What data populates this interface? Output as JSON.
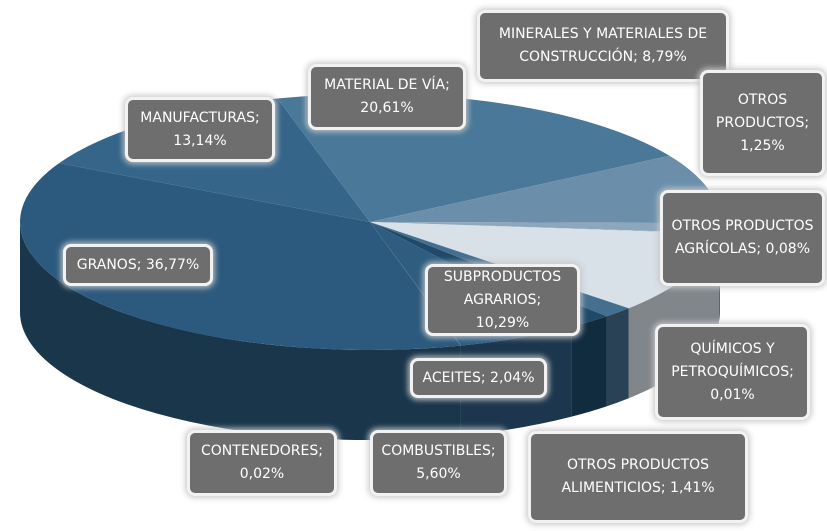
{
  "chart_data": {
    "type": "pie3d",
    "categories": [
      "GRANOS;",
      "MANUFACTURAS;",
      "MATERIAL DE VÍA;",
      "MINERALES Y MATERIALES DE CONSTRUCCIÓN;",
      "OTROS PRODUCTOS;",
      "OTROS PRODUCTOS AGRÍCOLAS;",
      "QUÍMICOS Y PETROQUÍMICOS;",
      "SUBPRODUCTOS AGRARIOS;",
      "OTROS PRODUCTOS ALIMENTICIOS;",
      "ACEITES;",
      "COMBUSTIBLES;",
      "CONTENEDORES;"
    ],
    "values": [
      36.77,
      13.14,
      20.61,
      8.79,
      1.25,
      0.08,
      0.01,
      10.29,
      1.41,
      2.04,
      5.6,
      0.02
    ],
    "value_labels": [
      "36,77%",
      "13,14%",
      "20,61%",
      "8,79%",
      "1,25%",
      "0,08%",
      "0,01%",
      "10,29%",
      "1,41%",
      "2,04%",
      "5,60%",
      "0,02%"
    ],
    "colors": [
      "#2c5a7e",
      "#36658a",
      "#4a7899",
      "#6b8fab",
      "#8ca6bc",
      "#a9bccc",
      "#c0ceda",
      "#d8e0e8",
      "#456f8f",
      "#1f4a69",
      "#2f5d80",
      "#3b6888"
    ]
  }
}
